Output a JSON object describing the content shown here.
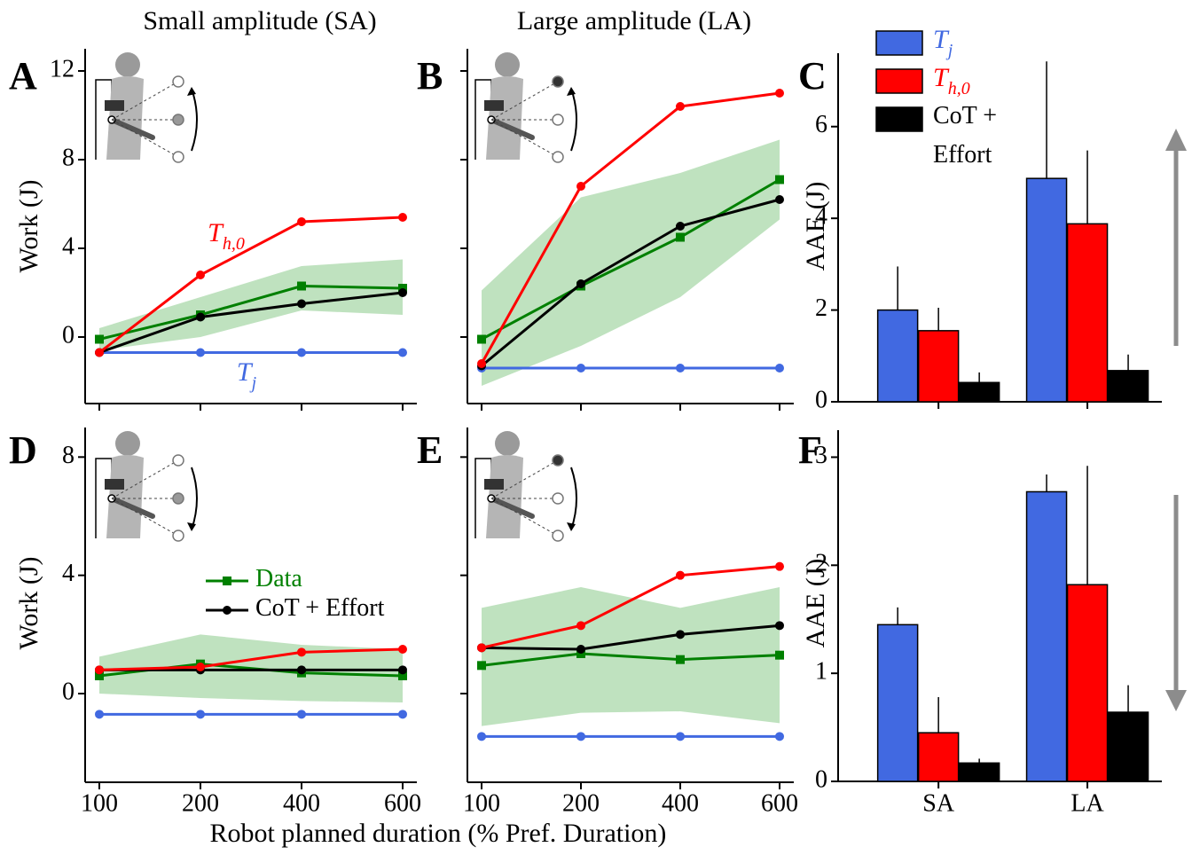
{
  "xlabel": "Robot planned duration (% Pref. Duration)",
  "chart_data": [
    {
      "type": "line",
      "label": "A",
      "title": "Small amplitude (SA)",
      "ylabel": "Work (J)",
      "ylim": [
        -3,
        13
      ],
      "yticks": [
        0,
        4,
        8,
        12
      ],
      "band": {
        "color": "#2ca02c",
        "lower": [
          -0.6,
          0,
          1.2,
          1.0
        ],
        "upper": [
          0.4,
          1.8,
          3.2,
          3.5
        ]
      },
      "series": [
        {
          "name": "T",
          "subscript": "j",
          "color": "#4169e1",
          "marker": "circle",
          "values": [
            -0.7,
            -0.7,
            -0.7,
            -0.7
          ]
        },
        {
          "color": "#008000",
          "marker": "square",
          "values": [
            -0.1,
            1.0,
            2.3,
            2.2
          ]
        },
        {
          "color": "#000000",
          "marker": "circle",
          "values": [
            -0.7,
            0.9,
            1.5,
            2.0
          ]
        },
        {
          "name": "T",
          "subscript": "h,0",
          "color": "#ff0000",
          "marker": "circle",
          "values": [
            -0.7,
            2.8,
            5.2,
            5.4
          ]
        }
      ]
    },
    {
      "type": "line",
      "label": "B",
      "title": "Large amplitude (LA)",
      "ylim": [
        -3,
        13
      ],
      "yticks": [
        0,
        4,
        8,
        12
      ],
      "ytick_labels": false,
      "band": {
        "color": "#2ca02c",
        "lower": [
          -2.2,
          -0.4,
          1.8,
          5.3
        ],
        "upper": [
          2.1,
          6.3,
          7.4,
          8.9
        ]
      },
      "series": [
        {
          "color": "#4169e1",
          "marker": "circle",
          "values": [
            -1.4,
            -1.4,
            -1.4,
            -1.4
          ]
        },
        {
          "color": "#008000",
          "marker": "square",
          "values": [
            -0.1,
            2.3,
            4.5,
            7.1
          ]
        },
        {
          "color": "#000000",
          "marker": "circle",
          "values": [
            -1.3,
            2.4,
            5.0,
            6.2
          ]
        },
        {
          "color": "#ff0000",
          "marker": "circle",
          "values": [
            -1.2,
            6.8,
            10.4,
            11.0
          ]
        }
      ]
    },
    {
      "type": "bar",
      "label": "C",
      "ylabel": "AAE (J)",
      "ylim": [
        0,
        7.6
      ],
      "yticks": [
        0,
        2,
        4,
        6
      ],
      "legend": "upper left",
      "series": [
        {
          "name": "T",
          "subscript": "j",
          "color": "#4169e1",
          "values": [
            2.0,
            4.87
          ],
          "errors": [
            0.95,
            2.55
          ]
        },
        {
          "name": "T",
          "subscript": "h,0",
          "color": "#ff0000",
          "values": [
            1.55,
            3.88
          ],
          "errors": [
            0.5,
            1.6
          ]
        },
        {
          "name": "CoT + Effort",
          "color": "#000000",
          "values": [
            0.42,
            0.68
          ],
          "errors": [
            0.22,
            0.35
          ]
        }
      ]
    },
    {
      "type": "line",
      "label": "D",
      "ylabel": "Work (J)",
      "ylim": [
        -3,
        9
      ],
      "yticks": [
        0,
        4,
        8
      ],
      "categories": [
        "100",
        "200",
        "400",
        "600"
      ],
      "legend": "center",
      "band": {
        "color": "#2ca02c",
        "lower": [
          0,
          -0.15,
          -0.25,
          -0.3
        ],
        "upper": [
          1.25,
          2.0,
          1.65,
          1.5
        ]
      },
      "series": [
        {
          "color": "#4169e1",
          "marker": "circle",
          "values": [
            -0.7,
            -0.7,
            -0.7,
            -0.7
          ]
        },
        {
          "name": "Data",
          "color": "#008000",
          "marker": "square",
          "values": [
            0.6,
            1.0,
            0.7,
            0.6
          ]
        },
        {
          "name": "CoT + Effort",
          "color": "#000000",
          "marker": "circle",
          "values": [
            0.8,
            0.8,
            0.8,
            0.8
          ]
        },
        {
          "color": "#ff0000",
          "marker": "circle",
          "values": [
            0.8,
            0.9,
            1.4,
            1.5
          ]
        }
      ]
    },
    {
      "type": "line",
      "label": "E",
      "ylim": [
        -3,
        9
      ],
      "yticks": [
        0,
        4,
        8
      ],
      "ytick_labels": false,
      "categories": [
        "100",
        "200",
        "400",
        "600"
      ],
      "band": {
        "color": "#2ca02c",
        "lower": [
          -1.1,
          -0.65,
          -0.6,
          -1.0
        ],
        "upper": [
          2.9,
          3.6,
          2.9,
          3.6
        ]
      },
      "series": [
        {
          "color": "#4169e1",
          "marker": "circle",
          "values": [
            -1.45,
            -1.45,
            -1.45,
            -1.45
          ]
        },
        {
          "color": "#008000",
          "marker": "square",
          "values": [
            0.95,
            1.35,
            1.15,
            1.3
          ]
        },
        {
          "color": "#000000",
          "marker": "circle",
          "values": [
            1.55,
            1.5,
            2.0,
            2.3
          ]
        },
        {
          "color": "#ff0000",
          "marker": "circle",
          "values": [
            1.55,
            2.3,
            4.0,
            4.3
          ]
        }
      ]
    },
    {
      "type": "bar",
      "label": "F",
      "ylabel": "AAE (J)",
      "ylim": [
        0,
        3.25
      ],
      "yticks": [
        0,
        1,
        2,
        3
      ],
      "categories": [
        "SA",
        "LA"
      ],
      "series": [
        {
          "color": "#4169e1",
          "values": [
            1.45,
            2.68
          ],
          "errors": [
            0.16,
            0.16
          ]
        },
        {
          "color": "#ff0000",
          "values": [
            0.45,
            1.82
          ],
          "errors": [
            0.33,
            1.1
          ]
        },
        {
          "color": "#000000",
          "values": [
            0.17,
            0.64
          ],
          "errors": [
            0.04,
            0.25
          ]
        }
      ]
    }
  ]
}
